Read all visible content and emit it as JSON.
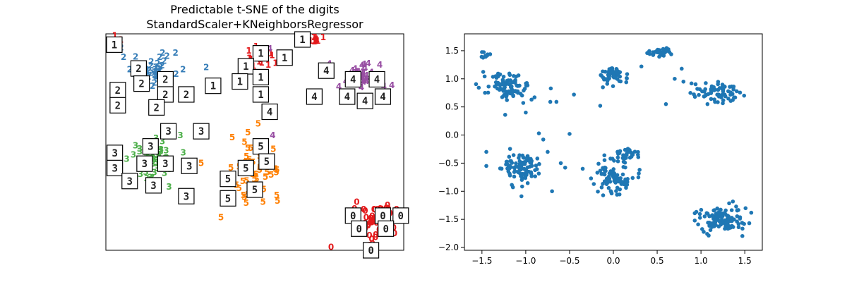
{
  "chart_data": [
    {
      "type": "scatter",
      "title_line1": "Predictable t-SNE of the digits",
      "title_line2": "StandardScaler+KNeighborsRegressor",
      "xlabel": "",
      "ylabel": "",
      "axes_visible": false,
      "xlim": [
        0,
        100
      ],
      "ylim": [
        0,
        100
      ],
      "colors": {
        "0": "#e41a1c",
        "1": "#e41a1c",
        "2": "#377eb8",
        "3": "#4daf4a",
        "4": "#984ea3",
        "5": "#ff7f00"
      },
      "clusters": [
        {
          "digit": "2",
          "cx": 15,
          "cy": 83,
          "rx": 8,
          "ry": 6,
          "n": 55
        },
        {
          "digit": "1",
          "cx": 52,
          "cy": 88,
          "rx": 5,
          "ry": 3,
          "n": 18
        },
        {
          "digit": "1",
          "cx": 70,
          "cy": 97,
          "rx": 2,
          "ry": 1.5,
          "n": 10
        },
        {
          "digit": "4",
          "cx": 85,
          "cy": 80,
          "rx": 6,
          "ry": 5,
          "n": 45
        },
        {
          "digit": "3",
          "cx": 16,
          "cy": 42,
          "rx": 5,
          "ry": 9,
          "n": 55
        },
        {
          "digit": "5",
          "cx": 50,
          "cy": 38,
          "rx": 7,
          "ry": 11,
          "n": 55
        },
        {
          "digit": "0",
          "cx": 91,
          "cy": 13,
          "rx": 6,
          "ry": 8,
          "n": 65
        }
      ],
      "scattered_labels": [
        {
          "t": "1",
          "x": 3,
          "y": 99,
          "c": "1"
        },
        {
          "t": "1",
          "x": 5,
          "y": 97,
          "c": "1"
        },
        {
          "t": "4",
          "x": 55,
          "y": 93,
          "c": "4"
        },
        {
          "t": "1",
          "x": 48,
          "y": 92,
          "c": "1"
        },
        {
          "t": "4",
          "x": 75,
          "y": 86,
          "c": "4"
        },
        {
          "t": "4",
          "x": 96,
          "y": 76,
          "c": "4"
        },
        {
          "t": "3",
          "x": 25,
          "y": 53,
          "c": "3"
        },
        {
          "t": "3",
          "x": 26,
          "y": 45,
          "c": "3"
        },
        {
          "t": "3",
          "x": 7,
          "y": 42,
          "c": "3"
        },
        {
          "t": "3",
          "x": 13,
          "y": 38,
          "c": "3"
        },
        {
          "t": "5",
          "x": 32,
          "y": 40,
          "c": "5"
        },
        {
          "t": "4",
          "x": 56,
          "y": 53,
          "c": "4"
        },
        {
          "t": "5",
          "x": 42,
          "y": 38,
          "c": "5"
        },
        {
          "t": "5",
          "x": 53,
          "y": 28,
          "c": "5"
        }
      ],
      "thumbnails": [
        {
          "d": "1",
          "x": 2,
          "y": 95
        },
        {
          "d": "1",
          "x": 66,
          "y": 98
        },
        {
          "d": "1",
          "x": 52,
          "y": 91
        },
        {
          "d": "1",
          "x": 60,
          "y": 89
        },
        {
          "d": "1",
          "x": 47,
          "y": 85
        },
        {
          "d": "1",
          "x": 52,
          "y": 80
        },
        {
          "d": "1",
          "x": 45,
          "y": 78
        },
        {
          "d": "1",
          "x": 52,
          "y": 72
        },
        {
          "d": "1",
          "x": 36,
          "y": 76
        },
        {
          "d": "2",
          "x": 11,
          "y": 84
        },
        {
          "d": "2",
          "x": 12,
          "y": 77
        },
        {
          "d": "2",
          "x": 20,
          "y": 79
        },
        {
          "d": "2",
          "x": 4,
          "y": 74
        },
        {
          "d": "2",
          "x": 20,
          "y": 72
        },
        {
          "d": "2",
          "x": 27,
          "y": 72
        },
        {
          "d": "2",
          "x": 4,
          "y": 67
        },
        {
          "d": "2",
          "x": 17,
          "y": 66
        },
        {
          "d": "4",
          "x": 74,
          "y": 83
        },
        {
          "d": "4",
          "x": 83,
          "y": 79
        },
        {
          "d": "4",
          "x": 91,
          "y": 79
        },
        {
          "d": "4",
          "x": 70,
          "y": 71
        },
        {
          "d": "4",
          "x": 81,
          "y": 71
        },
        {
          "d": "4",
          "x": 87,
          "y": 69
        },
        {
          "d": "4",
          "x": 93,
          "y": 71
        },
        {
          "d": "4",
          "x": 55,
          "y": 64
        },
        {
          "d": "3",
          "x": 21,
          "y": 55
        },
        {
          "d": "3",
          "x": 32,
          "y": 55
        },
        {
          "d": "3",
          "x": 15,
          "y": 48
        },
        {
          "d": "3",
          "x": 3,
          "y": 45
        },
        {
          "d": "3",
          "x": 13,
          "y": 40
        },
        {
          "d": "3",
          "x": 20,
          "y": 40
        },
        {
          "d": "3",
          "x": 28,
          "y": 39
        },
        {
          "d": "3",
          "x": 3,
          "y": 38
        },
        {
          "d": "3",
          "x": 8,
          "y": 32
        },
        {
          "d": "3",
          "x": 16,
          "y": 30
        },
        {
          "d": "3",
          "x": 27,
          "y": 25
        },
        {
          "d": "5",
          "x": 52,
          "y": 48
        },
        {
          "d": "5",
          "x": 54,
          "y": 41
        },
        {
          "d": "5",
          "x": 47,
          "y": 38
        },
        {
          "d": "5",
          "x": 41,
          "y": 33
        },
        {
          "d": "5",
          "x": 50,
          "y": 28
        },
        {
          "d": "5",
          "x": 41,
          "y": 24
        },
        {
          "d": "0",
          "x": 83,
          "y": 16
        },
        {
          "d": "0",
          "x": 93,
          "y": 16
        },
        {
          "d": "0",
          "x": 99,
          "y": 16
        },
        {
          "d": "0",
          "x": 85,
          "y": 10
        },
        {
          "d": "0",
          "x": 94,
          "y": 10
        },
        {
          "d": "0",
          "x": 89,
          "y": 0
        }
      ]
    },
    {
      "type": "scatter",
      "title": "",
      "xlabel": "",
      "ylabel": "",
      "xlim": [
        -1.7,
        1.7
      ],
      "ylim": [
        -2.05,
        1.8
      ],
      "xticks": [
        -1.5,
        -1.0,
        -0.5,
        0.0,
        0.5,
        1.0,
        1.5
      ],
      "xtick_labels": [
        "−1.5",
        "−1.0",
        "−0.5",
        "0.0",
        "0.5",
        "1.0",
        "1.5"
      ],
      "yticks": [
        -2.0,
        -1.5,
        -1.0,
        -0.5,
        0.0,
        0.5,
        1.0,
        1.5
      ],
      "ytick_labels": [
        "−2.0",
        "−1.5",
        "−1.0",
        "−0.5",
        "0.0",
        "0.5",
        "1.0",
        "1.5"
      ],
      "marker_color": "#1f77b4",
      "clusters": [
        {
          "cx": -1.47,
          "cy": 1.42,
          "rx": 0.06,
          "ry": 0.05,
          "n": 12
        },
        {
          "cx": -1.2,
          "cy": 0.85,
          "rx": 0.28,
          "ry": 0.22,
          "n": 95
        },
        {
          "cx": -1.05,
          "cy": -0.6,
          "rx": 0.18,
          "ry": 0.28,
          "n": 95
        },
        {
          "cx": -0.02,
          "cy": 1.08,
          "rx": 0.14,
          "ry": 0.16,
          "n": 55
        },
        {
          "cx": 0.55,
          "cy": 1.47,
          "rx": 0.12,
          "ry": 0.07,
          "n": 35
        },
        {
          "cx": 0.0,
          "cy": -0.75,
          "rx": 0.2,
          "ry": 0.25,
          "n": 85
        },
        {
          "cx": 0.15,
          "cy": -0.35,
          "rx": 0.12,
          "ry": 0.12,
          "n": 35
        },
        {
          "cx": 1.15,
          "cy": 0.75,
          "rx": 0.25,
          "ry": 0.18,
          "n": 70
        },
        {
          "cx": 1.25,
          "cy": -1.5,
          "rx": 0.26,
          "ry": 0.2,
          "n": 110
        }
      ],
      "extra_points": [
        {
          "x": -0.9,
          "y": 0.67
        },
        {
          "x": -1.0,
          "y": 0.4
        },
        {
          "x": -0.72,
          "y": 0.59
        },
        {
          "x": -0.65,
          "y": 0.59
        },
        {
          "x": -0.45,
          "y": 0.72
        },
        {
          "x": -0.15,
          "y": 0.52
        },
        {
          "x": -0.85,
          "y": 0.03
        },
        {
          "x": -0.5,
          "y": 0.02
        },
        {
          "x": -0.8,
          "y": -0.08
        },
        {
          "x": -0.75,
          "y": -0.3
        },
        {
          "x": -0.6,
          "y": -0.5
        },
        {
          "x": -0.55,
          "y": -0.58
        },
        {
          "x": -0.7,
          "y": -1.0
        },
        {
          "x": -1.45,
          "y": -0.3
        },
        {
          "x": -1.45,
          "y": -0.55
        },
        {
          "x": 0.32,
          "y": 1.22
        },
        {
          "x": 0.7,
          "y": 1.0
        },
        {
          "x": 0.8,
          "y": 0.95
        },
        {
          "x": 0.6,
          "y": 0.55
        },
        {
          "x": 0.78,
          "y": 1.18
        },
        {
          "x": -0.35,
          "y": -0.6
        }
      ]
    }
  ]
}
